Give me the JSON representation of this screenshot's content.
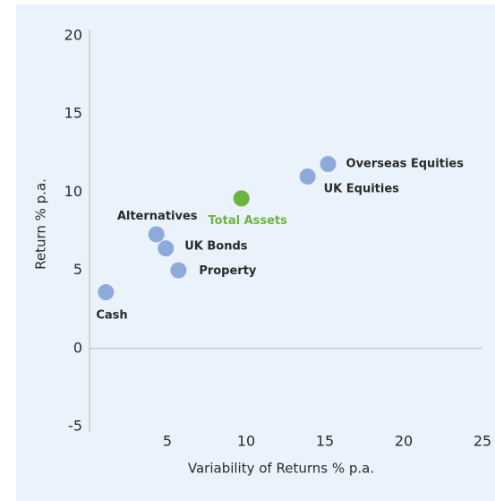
{
  "chart_data": {
    "type": "scatter",
    "x_label": "Variability of Returns % p.a.",
    "y_label": "Return % p.a.",
    "xlim": [
      0,
      25
    ],
    "xticks": [
      5,
      10,
      15,
      20,
      25
    ],
    "ylim": [
      -5,
      20
    ],
    "yticks": [
      -5,
      0,
      5,
      10,
      15,
      20
    ],
    "points": [
      {
        "label": "Cash",
        "x": 1.1,
        "y": 3.6,
        "color": "#8eaadb"
      },
      {
        "label": "Alternatives",
        "x": 4.3,
        "y": 7.3,
        "color": "#8eaadb"
      },
      {
        "label": "UK Bonds",
        "x": 4.9,
        "y": 6.4,
        "color": "#8eaadb"
      },
      {
        "label": "Property",
        "x": 5.7,
        "y": 5.0,
        "color": "#8eaadb"
      },
      {
        "label": "Total Assets",
        "x": 9.7,
        "y": 9.6,
        "color": "#6db33f"
      },
      {
        "label": "UK Equities",
        "x": 13.9,
        "y": 11.0,
        "color": "#8eaadb"
      },
      {
        "label": "Overseas Equities",
        "x": 15.2,
        "y": 11.8,
        "color": "#8eaadb"
      }
    ]
  }
}
